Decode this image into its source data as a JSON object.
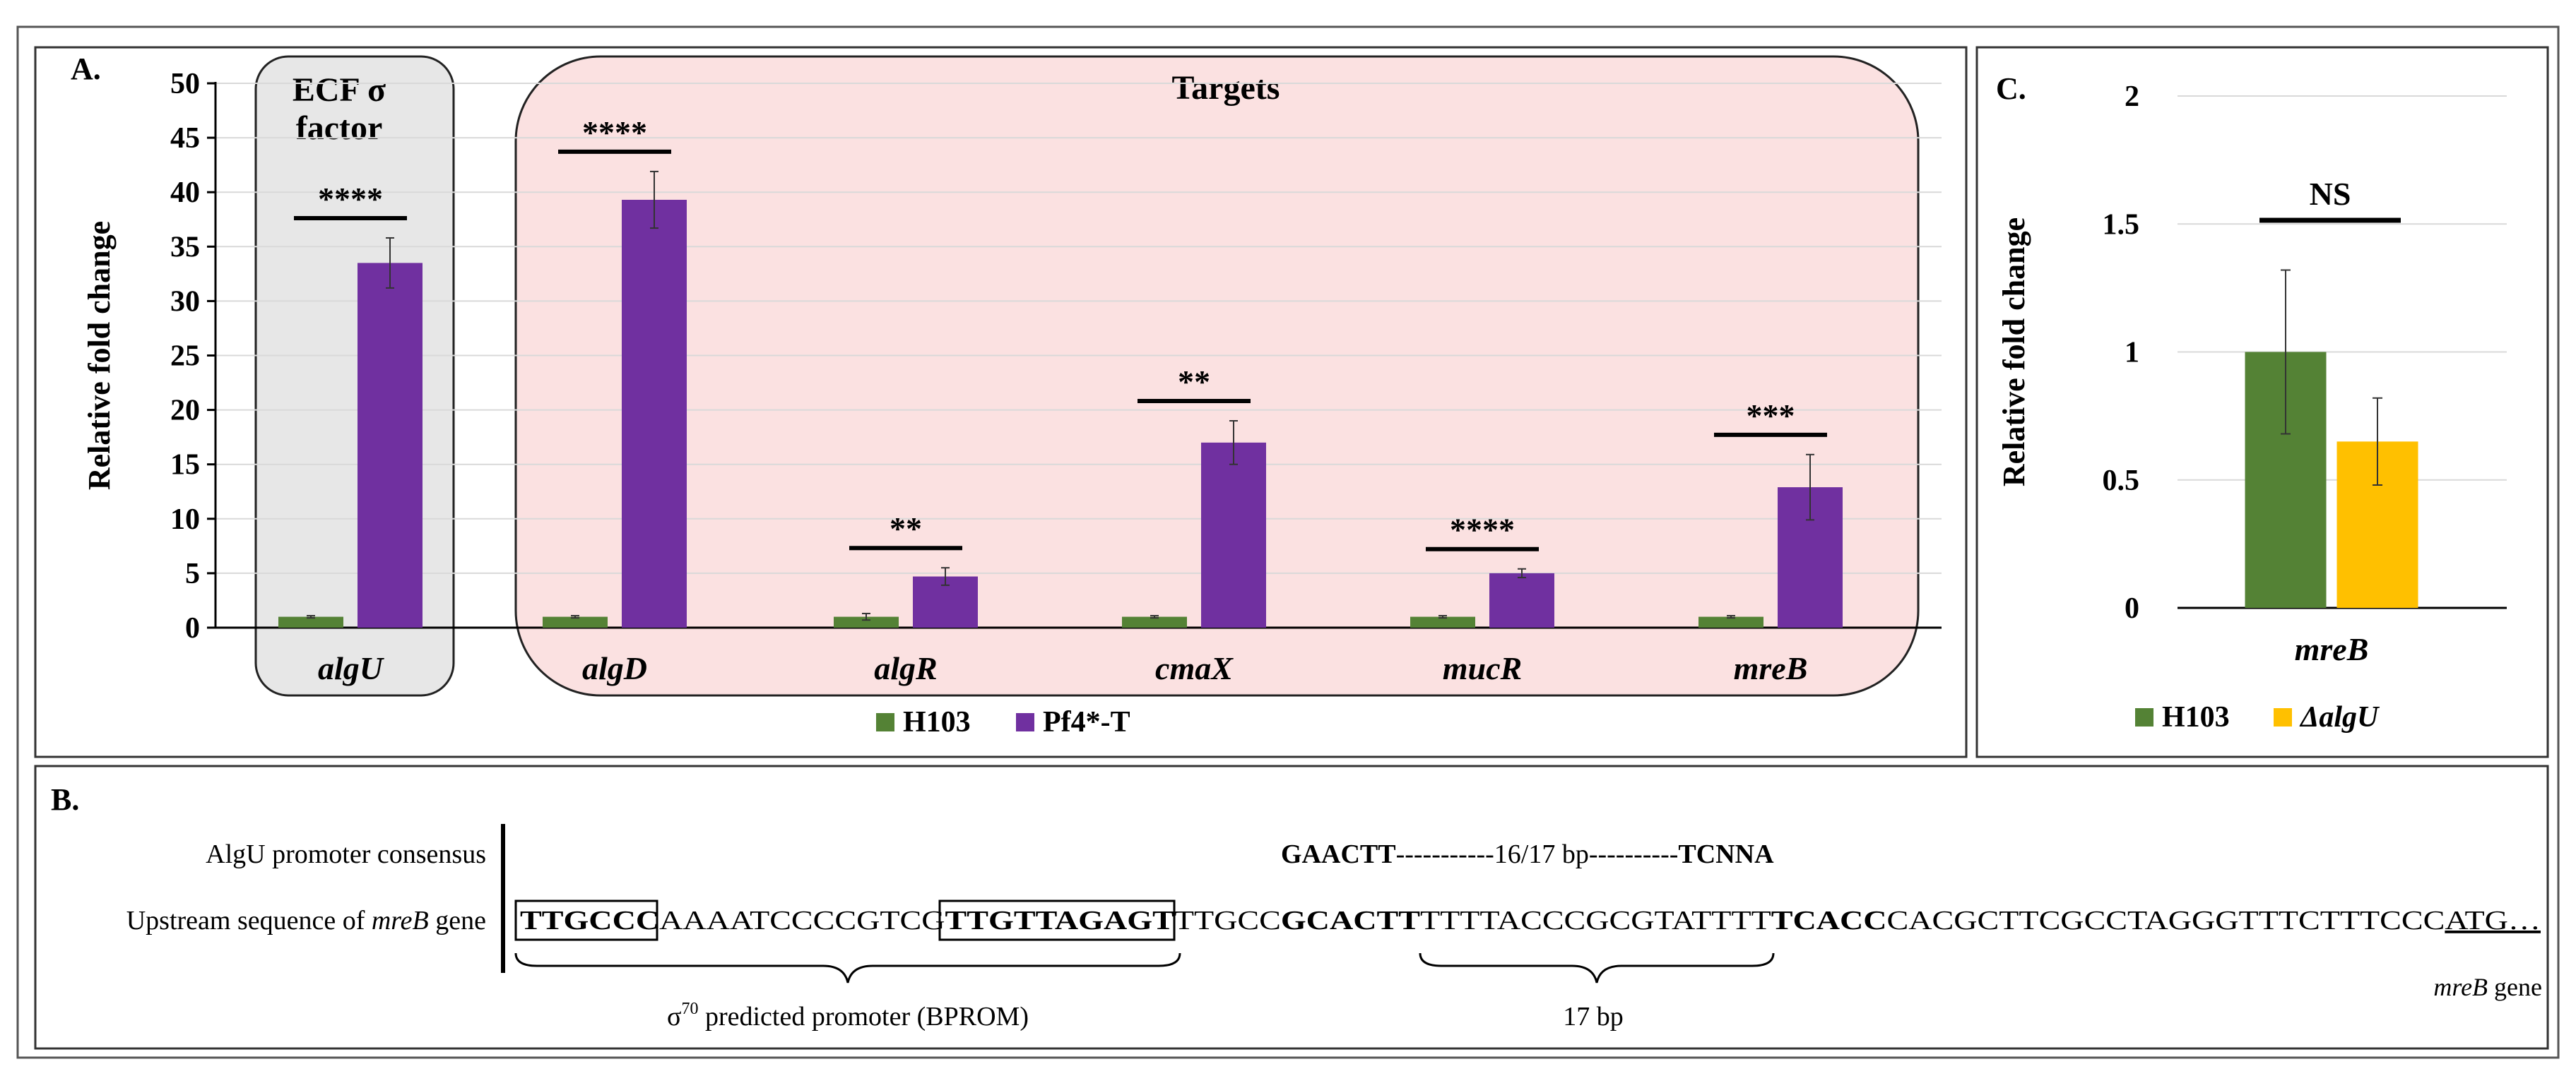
{
  "colors": {
    "h103": "#548235",
    "pf4": "#7030A0",
    "dalgu": "#FFC000",
    "ecf_box": "#E7E7E7",
    "targets_box": "#FBE1E1",
    "grid": "#D9D9D9"
  },
  "panelA": {
    "label": "A.",
    "ecf_label_line1": "ECF σ",
    "ecf_label_line2": "factor",
    "targets_label": "Targets",
    "legend": [
      "H103",
      "Pf4*-T"
    ]
  },
  "panelB": {
    "label": "B.",
    "consensus_label": "AlgU promoter consensus",
    "consensus_left": "GAACTT",
    "consensus_gap": "-----------16/17 bp----------",
    "consensus_right": "TCNNA",
    "upstream_label_pre": "Upstream sequence of ",
    "upstream_label_gene": "mreB",
    "upstream_label_post": " gene",
    "seq_box1": "TTGCCC",
    "seq_mid1": "AAAATCCCCGTCG",
    "seq_box2": "TTGTTAGAGT",
    "seq_mid2": "TTGCC",
    "seq_bold1": "GCACTT",
    "seq_mid3": "TTTTACCCGCGTATTTT",
    "seq_bold2": "TCACC",
    "seq_mid4": "CACGCTTCGCCTAGGGTTTCTTTCCC",
    "seq_atg": "ATG…",
    "promoter_sigma": "σ",
    "promoter_sup": "70",
    "promoter_text": " predicted promoter (BPROM)",
    "spacer_text": "17 bp",
    "gene_label_gene": "mreB",
    "gene_label_post": " gene"
  },
  "panelC": {
    "label": "C.",
    "legend": [
      "H103",
      "ΔalgU"
    ]
  },
  "chart_data": [
    {
      "type": "bar",
      "panel": "A",
      "title": "",
      "ylabel": "Relative fold change",
      "xlabel": "",
      "ylim": [
        0,
        50
      ],
      "yticks": [
        0,
        5,
        10,
        15,
        20,
        25,
        30,
        35,
        40,
        45,
        50
      ],
      "grid": true,
      "categories": [
        "algU",
        "algD",
        "algR",
        "cmaX",
        "mucR",
        "mreB"
      ],
      "series": [
        {
          "name": "H103",
          "values": [
            1,
            1,
            1,
            1,
            1,
            1
          ],
          "errors": [
            0.1,
            0.1,
            0.3,
            0.1,
            0.1,
            0.1
          ]
        },
        {
          "name": "Pf4*-T",
          "values": [
            33.5,
            39.3,
            4.7,
            17.0,
            5.0,
            12.9
          ],
          "errors": [
            2.3,
            2.6,
            0.8,
            2.0,
            0.4,
            3.0
          ]
        }
      ],
      "significance": [
        "****",
        "****",
        "**",
        "**",
        "****",
        "***"
      ],
      "legend_position": "bottom"
    },
    {
      "type": "bar",
      "panel": "C",
      "title": "",
      "ylabel": "Relative fold change",
      "xlabel": "",
      "ylim": [
        0,
        2
      ],
      "yticks": [
        "0",
        "0.5",
        "1",
        "1.5",
        "2"
      ],
      "grid": true,
      "categories": [
        "mreB"
      ],
      "series": [
        {
          "name": "H103",
          "values": [
            1.0
          ],
          "errors": [
            0.32
          ]
        },
        {
          "name": "ΔalgU",
          "values": [
            0.65
          ],
          "errors": [
            0.17
          ]
        }
      ],
      "significance": [
        "NS"
      ],
      "legend_position": "bottom"
    }
  ]
}
